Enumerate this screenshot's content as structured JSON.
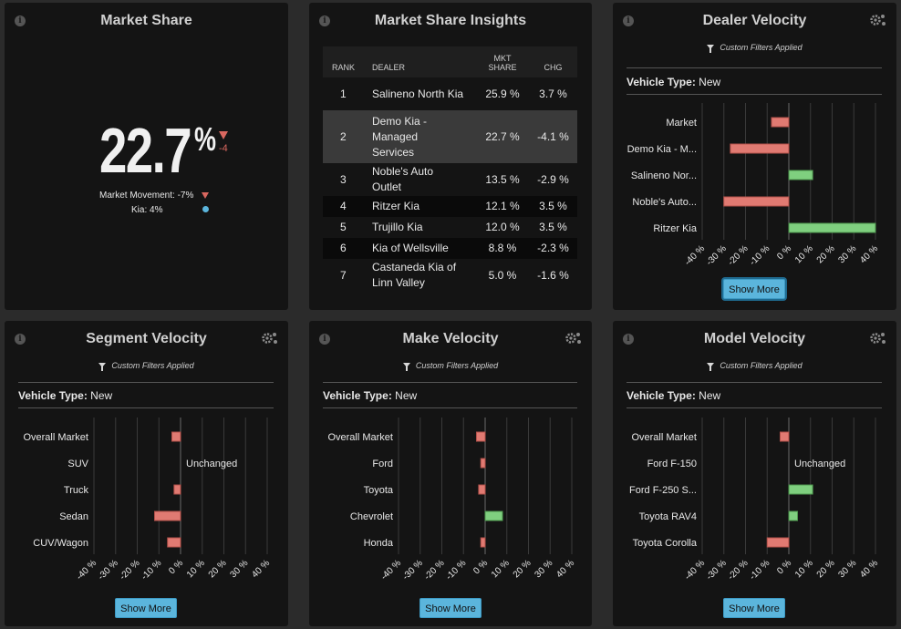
{
  "market_share": {
    "title": "Market Share",
    "value": "22.7",
    "percent_sign": "%",
    "change": "-4",
    "legend": [
      {
        "label": "Market Movement: -7%",
        "marker": "triangle-down",
        "color": "#d9675f"
      },
      {
        "label": "Kia: 4%",
        "marker": "dot",
        "color": "#5bb5dc"
      }
    ]
  },
  "insights": {
    "title": "Market Share Insights",
    "headers": {
      "rank": "RANK",
      "dealer": "DEALER",
      "share": "MKT SHARE",
      "chg": "CHG"
    },
    "rows": [
      {
        "rank": "1",
        "dealer": "Salineno North Kia",
        "share": "25.9 %",
        "chg": "3.7 %",
        "dir": "up"
      },
      {
        "rank": "2",
        "dealer": "Demo Kia - Managed Services",
        "share": "22.7 %",
        "chg": "-4.1 %",
        "dir": "dn"
      },
      {
        "rank": "3",
        "dealer": "Noble's Auto Outlet",
        "share": "13.5 %",
        "chg": "-2.9 %",
        "dir": "dn"
      },
      {
        "rank": "4",
        "dealer": "Ritzer Kia",
        "share": "12.1 %",
        "chg": "3.5 %",
        "dir": "up"
      },
      {
        "rank": "5",
        "dealer": "Trujillo Kia",
        "share": "12.0 %",
        "chg": "3.5 %",
        "dir": "up"
      },
      {
        "rank": "6",
        "dealer": "Kia of Wellsville",
        "share": "8.8 %",
        "chg": "-2.3 %",
        "dir": "dn"
      },
      {
        "rank": "7",
        "dealer": "Castaneda Kia of Linn Valley",
        "share": "5.0 %",
        "chg": "-1.6 %",
        "dir": "dn"
      }
    ]
  },
  "filters_label": "Custom Filters Applied",
  "vehicle_type_label": "Vehicle Type:",
  "vehicle_type_value": "New",
  "show_more": "Show More",
  "unchanged_label": "Unchanged",
  "colors": {
    "positive": "#7fcf7f",
    "negative": "#e07a72",
    "accent": "#5bb5dc"
  },
  "chart_data": [
    {
      "panel": "Dealer Velocity",
      "type": "bar",
      "orientation": "horizontal",
      "xlim": [
        -40,
        40
      ],
      "ticks": [
        "-40 %",
        "-30 %",
        "-20 %",
        "-10 %",
        "0 %",
        "10 %",
        "20 %",
        "30 %",
        "40 %"
      ],
      "categories": [
        "Market",
        "Demo Kia - M...",
        "Salineno Nor...",
        "Noble's Auto...",
        "Ritzer Kia"
      ],
      "values": [
        -8,
        -27,
        11,
        -30,
        40
      ]
    },
    {
      "panel": "Segment Velocity",
      "type": "bar",
      "orientation": "horizontal",
      "xlim": [
        -40,
        40
      ],
      "ticks": [
        "-40 %",
        "-30 %",
        "-20 %",
        "-10 %",
        "0 %",
        "10 %",
        "20 %",
        "30 %",
        "40 %"
      ],
      "categories": [
        "Overall Market",
        "SUV",
        "Truck",
        "Sedan",
        "CUV/Wagon"
      ],
      "values": [
        -4,
        0,
        -3,
        -12,
        -6
      ],
      "unchanged": [
        false,
        true,
        false,
        false,
        false
      ]
    },
    {
      "panel": "Make Velocity",
      "type": "bar",
      "orientation": "horizontal",
      "xlim": [
        -40,
        40
      ],
      "ticks": [
        "-40 %",
        "-30 %",
        "-20 %",
        "-10 %",
        "0 %",
        "10 %",
        "20 %",
        "30 %",
        "40 %"
      ],
      "categories": [
        "Overall Market",
        "Ford",
        "Toyota",
        "Chevrolet",
        "Honda"
      ],
      "values": [
        -4,
        -2,
        -3,
        8,
        -2
      ]
    },
    {
      "panel": "Model Velocity",
      "type": "bar",
      "orientation": "horizontal",
      "xlim": [
        -40,
        40
      ],
      "ticks": [
        "-40 %",
        "-30 %",
        "-20 %",
        "-10 %",
        "0 %",
        "10 %",
        "20 %",
        "30 %",
        "40 %"
      ],
      "categories": [
        "Overall Market",
        "Ford F-150",
        "Ford F-250 S...",
        "Toyota RAV4",
        "Toyota Corolla"
      ],
      "values": [
        -4,
        0,
        11,
        4,
        -10
      ],
      "unchanged": [
        false,
        true,
        false,
        false,
        false
      ]
    }
  ]
}
